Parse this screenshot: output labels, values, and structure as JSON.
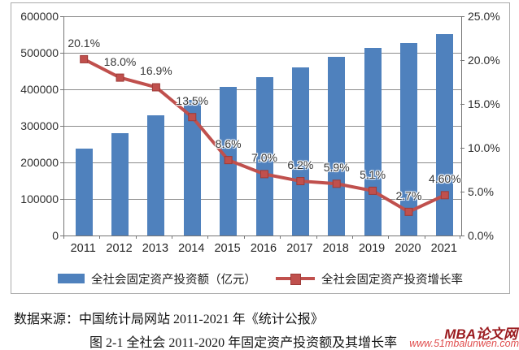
{
  "chart_data": {
    "type": "bar",
    "subtype": "bar-line-combo",
    "title": "",
    "categories": [
      "2011",
      "2012",
      "2013",
      "2014",
      "2015",
      "2016",
      "2017",
      "2018",
      "2019",
      "2020",
      "2021"
    ],
    "series": [
      {
        "name": "全社会固定资产投资额（亿元）",
        "type": "bar",
        "axis": "left",
        "color": "#4f81bd",
        "values": [
          238000,
          281000,
          328000,
          371000,
          406000,
          433000,
          460000,
          488000,
          514000,
          527000,
          552000
        ]
      },
      {
        "name": "全社会固定资产投资增长率",
        "type": "line",
        "axis": "right",
        "color": "#c0504d",
        "marker_border": "#9e3b38",
        "values": [
          20.1,
          18.0,
          16.9,
          13.5,
          8.6,
          7.0,
          6.2,
          5.9,
          5.1,
          2.7,
          4.6
        ],
        "point_labels": [
          "20.1%",
          "18.0%",
          "16.9%",
          "13.5%",
          "8.6%",
          "7.0%",
          "6.2%",
          "5.9%",
          "5.1%",
          "2.7%",
          "4.60%"
        ]
      }
    ],
    "left_axis": {
      "min": 0,
      "max": 600000,
      "step": 100000,
      "tick_labels": [
        "0",
        "100000",
        "200000",
        "300000",
        "400000",
        "500000",
        "600000"
      ]
    },
    "right_axis": {
      "min": 0,
      "max": 25,
      "step": 5,
      "tick_labels": [
        "0.0%",
        "5.0%",
        "10.0%",
        "15.0%",
        "20.0%",
        "25.0%"
      ]
    },
    "grid": true,
    "legend_position": "bottom"
  },
  "footer": {
    "source": "数据来源：中国统计局网站 2011-2021 年《统计公报》",
    "caption": "图 2-1 全社会 2011-2020 年固定资产投资额及其增长率"
  },
  "watermark": {
    "site_name": "MBA论文网",
    "site_url": "www.51mbalunwen.com",
    "name_color": "#9b1b1f",
    "url_color": "#e04f4f"
  }
}
